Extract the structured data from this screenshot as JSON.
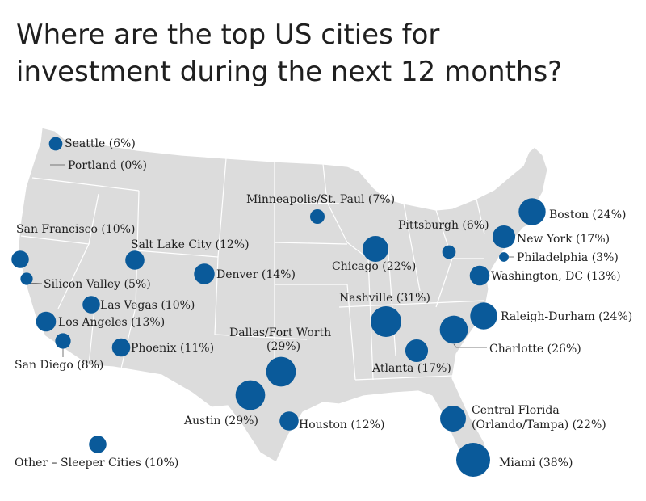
{
  "title_line1": "Where are the top US cities for",
  "title_line2": "investment during the next 12 months?",
  "colors": {
    "bubble": "#0a5a9a",
    "land": "#dcdcdc",
    "state_lines": "#ffffff",
    "text": "#1f1f1f"
  },
  "chart_data": {
    "type": "scatter",
    "value_unit": "%",
    "cities": [
      {
        "label": "Seattle (6%)",
        "value": 6
      },
      {
        "label": "Portland (0%)",
        "value": 0
      },
      {
        "label": "Minneapolis/St. Paul (7%)",
        "value": 7
      },
      {
        "label": "San Francisco (10%)",
        "value": 10
      },
      {
        "label": "Salt Lake City (12%)",
        "value": 12
      },
      {
        "label": "Pittsburgh (6%)",
        "value": 6
      },
      {
        "label": "Boston (24%)",
        "value": 24
      },
      {
        "label": "New York (17%)",
        "value": 17
      },
      {
        "label": "Philadelphia (3%)",
        "value": 3
      },
      {
        "label": "Chicago (22%)",
        "value": 22
      },
      {
        "label": "Denver (14%)",
        "value": 14
      },
      {
        "label": "Washington, DC (13%)",
        "value": 13
      },
      {
        "label": "Silicon Valley (5%)",
        "value": 5
      },
      {
        "label": "Nashville (31%)",
        "value": 31
      },
      {
        "label": "Las Vegas (10%)",
        "value": 10
      },
      {
        "label": "Raleigh-Durham (24%)",
        "value": 24
      },
      {
        "label": "Los Angeles (13%)",
        "value": 13
      },
      {
        "label": "Dallas/Fort Worth (29%)",
        "value": 29
      },
      {
        "label": "Phoenix (11%)",
        "value": 11
      },
      {
        "label": "Charlotte (26%)",
        "value": 26
      },
      {
        "label": "Atlanta (17%)",
        "value": 17
      },
      {
        "label": "San Diego (8%)",
        "value": 8
      },
      {
        "label": "Austin (29%)",
        "value": 29
      },
      {
        "label": "Houston (12%)",
        "value": 12
      },
      {
        "label": "Central Florida (Orlando/Tampa) (22%)",
        "value": 22
      },
      {
        "label": "Miami (38%)",
        "value": 38
      },
      {
        "label": "Other – Sleeper Cities (10%)",
        "value": 10
      }
    ]
  }
}
